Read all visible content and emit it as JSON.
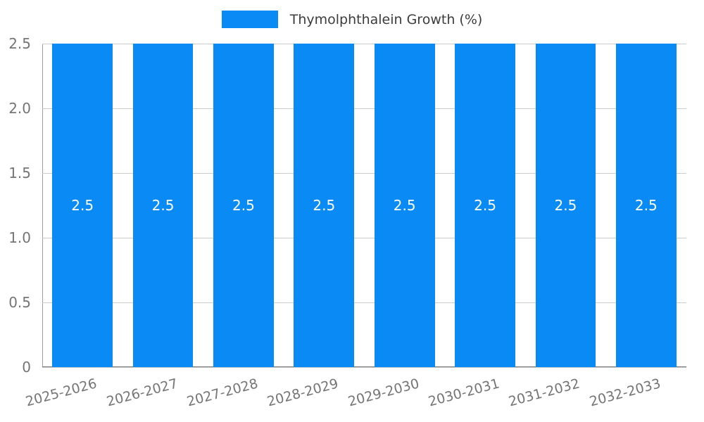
{
  "chart_data": {
    "type": "bar",
    "title": "Thymolphthalein Growth (%)",
    "legend": {
      "position": "top",
      "entries": [
        {
          "label": "Thymolphthalein Growth (%)",
          "color": "#0a8af5"
        }
      ]
    },
    "categories": [
      "2025-2026",
      "2026-2027",
      "2027-2028",
      "2028-2029",
      "2029-2030",
      "2030-2031",
      "2031-2032",
      "2032-2033"
    ],
    "series": [
      {
        "name": "Thymolphthalein Growth (%)",
        "values": [
          2.5,
          2.5,
          2.5,
          2.5,
          2.5,
          2.5,
          2.5,
          2.5
        ]
      }
    ],
    "bar_labels": [
      "2.5",
      "2.5",
      "2.5",
      "2.5",
      "2.5",
      "2.5",
      "2.5",
      "2.5"
    ],
    "xlabel": "",
    "ylabel": "",
    "ylim": [
      0,
      2.5
    ],
    "yticks": [
      {
        "value": 0,
        "label": "0"
      },
      {
        "value": 0.5,
        "label": "0.5"
      },
      {
        "value": 1.0,
        "label": "1.0"
      },
      {
        "value": 1.5,
        "label": "1.5"
      },
      {
        "value": 2.0,
        "label": "2.0"
      },
      {
        "value": 2.5,
        "label": "2.5"
      }
    ],
    "grid": true,
    "colors": {
      "bar": "#0a8af5",
      "grid": "#cccccc",
      "axis": "#9e9e9e",
      "tick_text": "#757575",
      "value_label": "#ffffff",
      "background": "#ffffff"
    }
  }
}
